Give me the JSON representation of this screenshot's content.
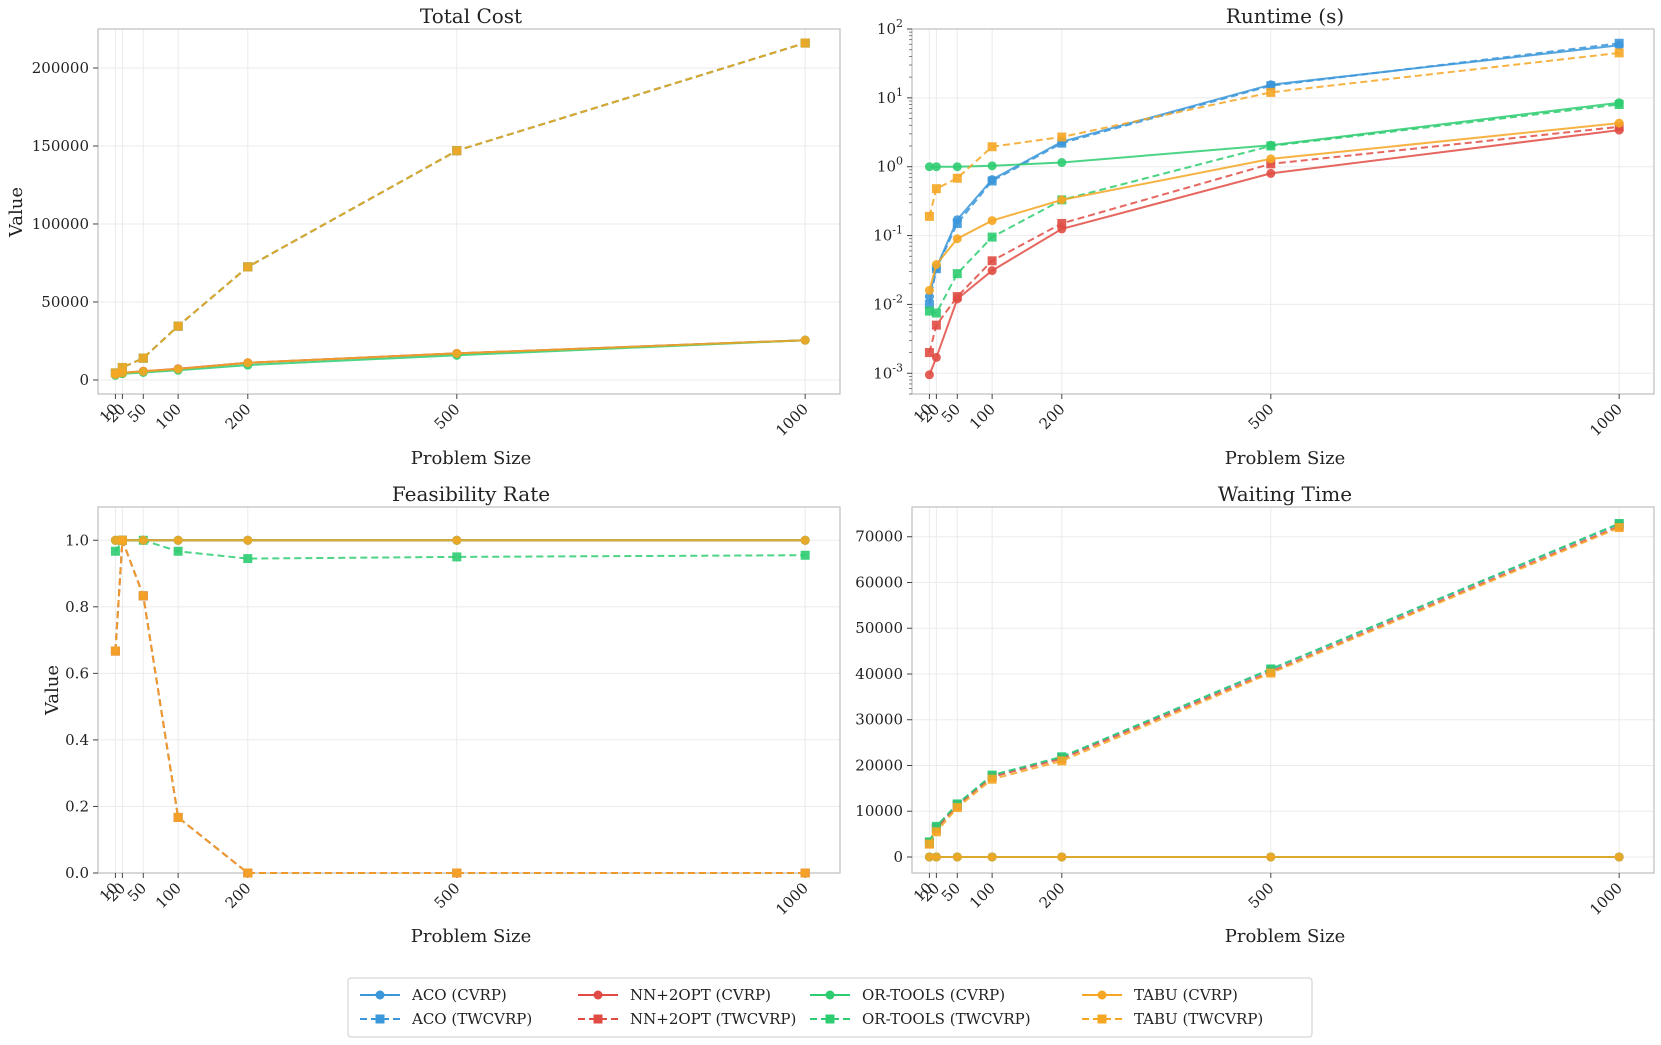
{
  "legend": {
    "entries": [
      {
        "label": "ACO (CVRP)",
        "color": "#3b97d9",
        "dash": "solid",
        "marker": "circle"
      },
      {
        "label": "ACO (TWCVRP)",
        "color": "#3b97d9",
        "dash": "dashed",
        "marker": "square"
      },
      {
        "label": "NN+2OPT (CVRP)",
        "color": "#e04c44",
        "dash": "solid",
        "marker": "circle"
      },
      {
        "label": "NN+2OPT (TWCVRP)",
        "color": "#e04c44",
        "dash": "dashed",
        "marker": "square"
      },
      {
        "label": "OR-TOOLS (CVRP)",
        "color": "#2ecc71",
        "dash": "solid",
        "marker": "circle"
      },
      {
        "label": "OR-TOOLS (TWCVRP)",
        "color": "#2ecc71",
        "dash": "dashed",
        "marker": "square"
      },
      {
        "label": "TABU (CVRP)",
        "color": "#f5a623",
        "dash": "solid",
        "marker": "circle"
      },
      {
        "label": "TABU (TWCVRP)",
        "color": "#f5a623",
        "dash": "dashed",
        "marker": "square"
      }
    ]
  },
  "chart_data": [
    {
      "type": "line",
      "title": "Total Cost",
      "xlabel": "Problem Size",
      "ylabel": "Value",
      "x": [
        10,
        20,
        50,
        100,
        200,
        500,
        1000
      ],
      "xticks": [
        "10",
        "20",
        "50",
        "100",
        "200",
        "500",
        "1000"
      ],
      "ylim": [
        -9000,
        225000
      ],
      "yscale": "linear",
      "yticks": [
        0,
        50000,
        100000,
        150000,
        200000
      ],
      "yticklabels": [
        "0",
        "50000",
        "100000",
        "150000",
        "200000"
      ],
      "series": [
        {
          "name": "ACO (CVRP)",
          "values": [
            3500,
            4500,
            5500,
            7000,
            11000,
            17000,
            25500
          ]
        },
        {
          "name": "ACO (TWCVRP)",
          "values": [
            4500,
            8000,
            14000,
            34500,
            72500,
            147000,
            216000
          ]
        },
        {
          "name": "NN+2OPT (CVRP)",
          "values": [
            3600,
            4600,
            5600,
            7200,
            11000,
            17000,
            25500
          ]
        },
        {
          "name": "NN+2OPT (TWCVRP)",
          "values": [
            4500,
            8000,
            14000,
            34500,
            72500,
            147000,
            216000
          ]
        },
        {
          "name": "OR-TOOLS (CVRP)",
          "values": [
            3000,
            4000,
            4800,
            6200,
            9500,
            15800,
            25500
          ]
        },
        {
          "name": "OR-TOOLS (TWCVRP)",
          "values": [
            4500,
            8000,
            14000,
            34500,
            72500,
            147000,
            216000
          ]
        },
        {
          "name": "TABU (CVRP)",
          "values": [
            3500,
            4500,
            5500,
            7000,
            11000,
            17000,
            25500
          ]
        },
        {
          "name": "TABU (TWCVRP)",
          "values": [
            4500,
            8000,
            14000,
            34500,
            72500,
            147000,
            216000
          ]
        }
      ]
    },
    {
      "type": "line",
      "title": "Runtime (s)",
      "xlabel": "Problem Size",
      "ylabel": "",
      "x": [
        10,
        20,
        50,
        100,
        200,
        500,
        1000
      ],
      "xticks": [
        "10",
        "20",
        "50",
        "100",
        "200",
        "500",
        "1000"
      ],
      "ylim": [
        0.0005,
        100
      ],
      "yscale": "log",
      "yticks": [
        0.001,
        0.01,
        0.1,
        1,
        10,
        100
      ],
      "yticklabels": [
        "10^-3",
        "10^-2",
        "10^-1",
        "10^0",
        "10^1",
        "10^2"
      ],
      "series": [
        {
          "name": "ACO (CVRP)",
          "values": [
            0.013,
            0.034,
            0.17,
            0.65,
            2.3,
            15.5,
            58
          ]
        },
        {
          "name": "ACO (TWCVRP)",
          "values": [
            0.01,
            0.033,
            0.15,
            0.62,
            2.2,
            15,
            62
          ]
        },
        {
          "name": "NN+2OPT (CVRP)",
          "values": [
            0.00095,
            0.0017,
            0.012,
            0.031,
            0.125,
            0.8,
            3.4
          ]
        },
        {
          "name": "NN+2OPT (TWCVRP)",
          "values": [
            0.002,
            0.005,
            0.013,
            0.043,
            0.15,
            1.1,
            3.8
          ]
        },
        {
          "name": "OR-TOOLS (CVRP)",
          "values": [
            1.0,
            1.0,
            1.0,
            1.03,
            1.15,
            2.05,
            8.5
          ]
        },
        {
          "name": "OR-TOOLS (TWCVRP)",
          "values": [
            0.008,
            0.0075,
            0.028,
            0.095,
            0.33,
            2.0,
            8.0
          ]
        },
        {
          "name": "TABU (CVRP)",
          "values": [
            0.016,
            0.038,
            0.09,
            0.165,
            0.33,
            1.3,
            4.3
          ]
        },
        {
          "name": "TABU (TWCVRP)",
          "values": [
            0.19,
            0.48,
            0.68,
            1.95,
            2.7,
            12,
            45
          ]
        }
      ]
    },
    {
      "type": "line",
      "title": "Feasibility Rate",
      "xlabel": "Problem Size",
      "ylabel": "Value",
      "x": [
        10,
        20,
        50,
        100,
        200,
        500,
        1000
      ],
      "xticks": [
        "10",
        "20",
        "50",
        "100",
        "200",
        "500",
        "1000"
      ],
      "ylim": [
        0,
        1.1
      ],
      "yscale": "linear",
      "yticks": [
        0,
        0.2,
        0.4,
        0.6,
        0.8,
        1.0
      ],
      "yticklabels": [
        "0.0",
        "0.2",
        "0.4",
        "0.6",
        "0.8",
        "1.0"
      ],
      "series": [
        {
          "name": "ACO (CVRP)",
          "values": [
            1,
            1,
            1,
            1,
            1,
            1,
            1
          ]
        },
        {
          "name": "ACO (TWCVRP)",
          "values": [
            0.667,
            1.0,
            0.833,
            0.167,
            0,
            0,
            0
          ]
        },
        {
          "name": "NN+2OPT (CVRP)",
          "values": [
            1,
            1,
            1,
            1,
            1,
            1,
            1
          ]
        },
        {
          "name": "NN+2OPT (TWCVRP)",
          "values": [
            0.667,
            1.0,
            0.833,
            0.167,
            0,
            0,
            0
          ]
        },
        {
          "name": "OR-TOOLS (CVRP)",
          "values": [
            1,
            1,
            1,
            1,
            1,
            1,
            1
          ]
        },
        {
          "name": "OR-TOOLS (TWCVRP)",
          "values": [
            0.967,
            1.0,
            1.0,
            0.967,
            0.945,
            0.95,
            0.955
          ]
        },
        {
          "name": "TABU (CVRP)",
          "values": [
            1,
            1,
            1,
            1,
            1,
            1,
            1
          ]
        },
        {
          "name": "TABU (TWCVRP)",
          "values": [
            0.667,
            1.0,
            0.833,
            0.167,
            0,
            0,
            0
          ]
        }
      ]
    },
    {
      "type": "line",
      "title": "Waiting Time",
      "xlabel": "Problem Size",
      "ylabel": "",
      "x": [
        10,
        20,
        50,
        100,
        200,
        500,
        1000
      ],
      "xticks": [
        "10",
        "20",
        "50",
        "100",
        "200",
        "500",
        "1000"
      ],
      "ylim": [
        -3500,
        76500
      ],
      "yscale": "linear",
      "yticks": [
        0,
        10000,
        20000,
        30000,
        40000,
        50000,
        60000,
        70000
      ],
      "yticklabels": [
        "0",
        "10000",
        "20000",
        "30000",
        "40000",
        "50000",
        "60000",
        "70000"
      ],
      "series": [
        {
          "name": "ACO (CVRP)",
          "values": [
            0,
            0,
            0,
            0,
            0,
            0,
            0
          ]
        },
        {
          "name": "ACO (TWCVRP)",
          "values": [
            3200,
            6500,
            11500,
            17800,
            21800,
            41000,
            72800
          ]
        },
        {
          "name": "NN+2OPT (CVRP)",
          "values": [
            0,
            0,
            0,
            0,
            0,
            0,
            0
          ]
        },
        {
          "name": "NN+2OPT (TWCVRP)",
          "values": [
            3000,
            6200,
            11200,
            17500,
            21500,
            40500,
            72300
          ]
        },
        {
          "name": "OR-TOOLS (CVRP)",
          "values": [
            0,
            0,
            0,
            0,
            0,
            0,
            0
          ]
        },
        {
          "name": "OR-TOOLS (TWCVRP)",
          "values": [
            3300,
            6700,
            11600,
            17900,
            21900,
            41100,
            72900
          ]
        },
        {
          "name": "TABU (CVRP)",
          "values": [
            0,
            0,
            0,
            0,
            0,
            0,
            0
          ]
        },
        {
          "name": "TABU (TWCVRP)",
          "values": [
            2800,
            5500,
            10800,
            17000,
            21000,
            40200,
            72000
          ]
        }
      ]
    }
  ]
}
